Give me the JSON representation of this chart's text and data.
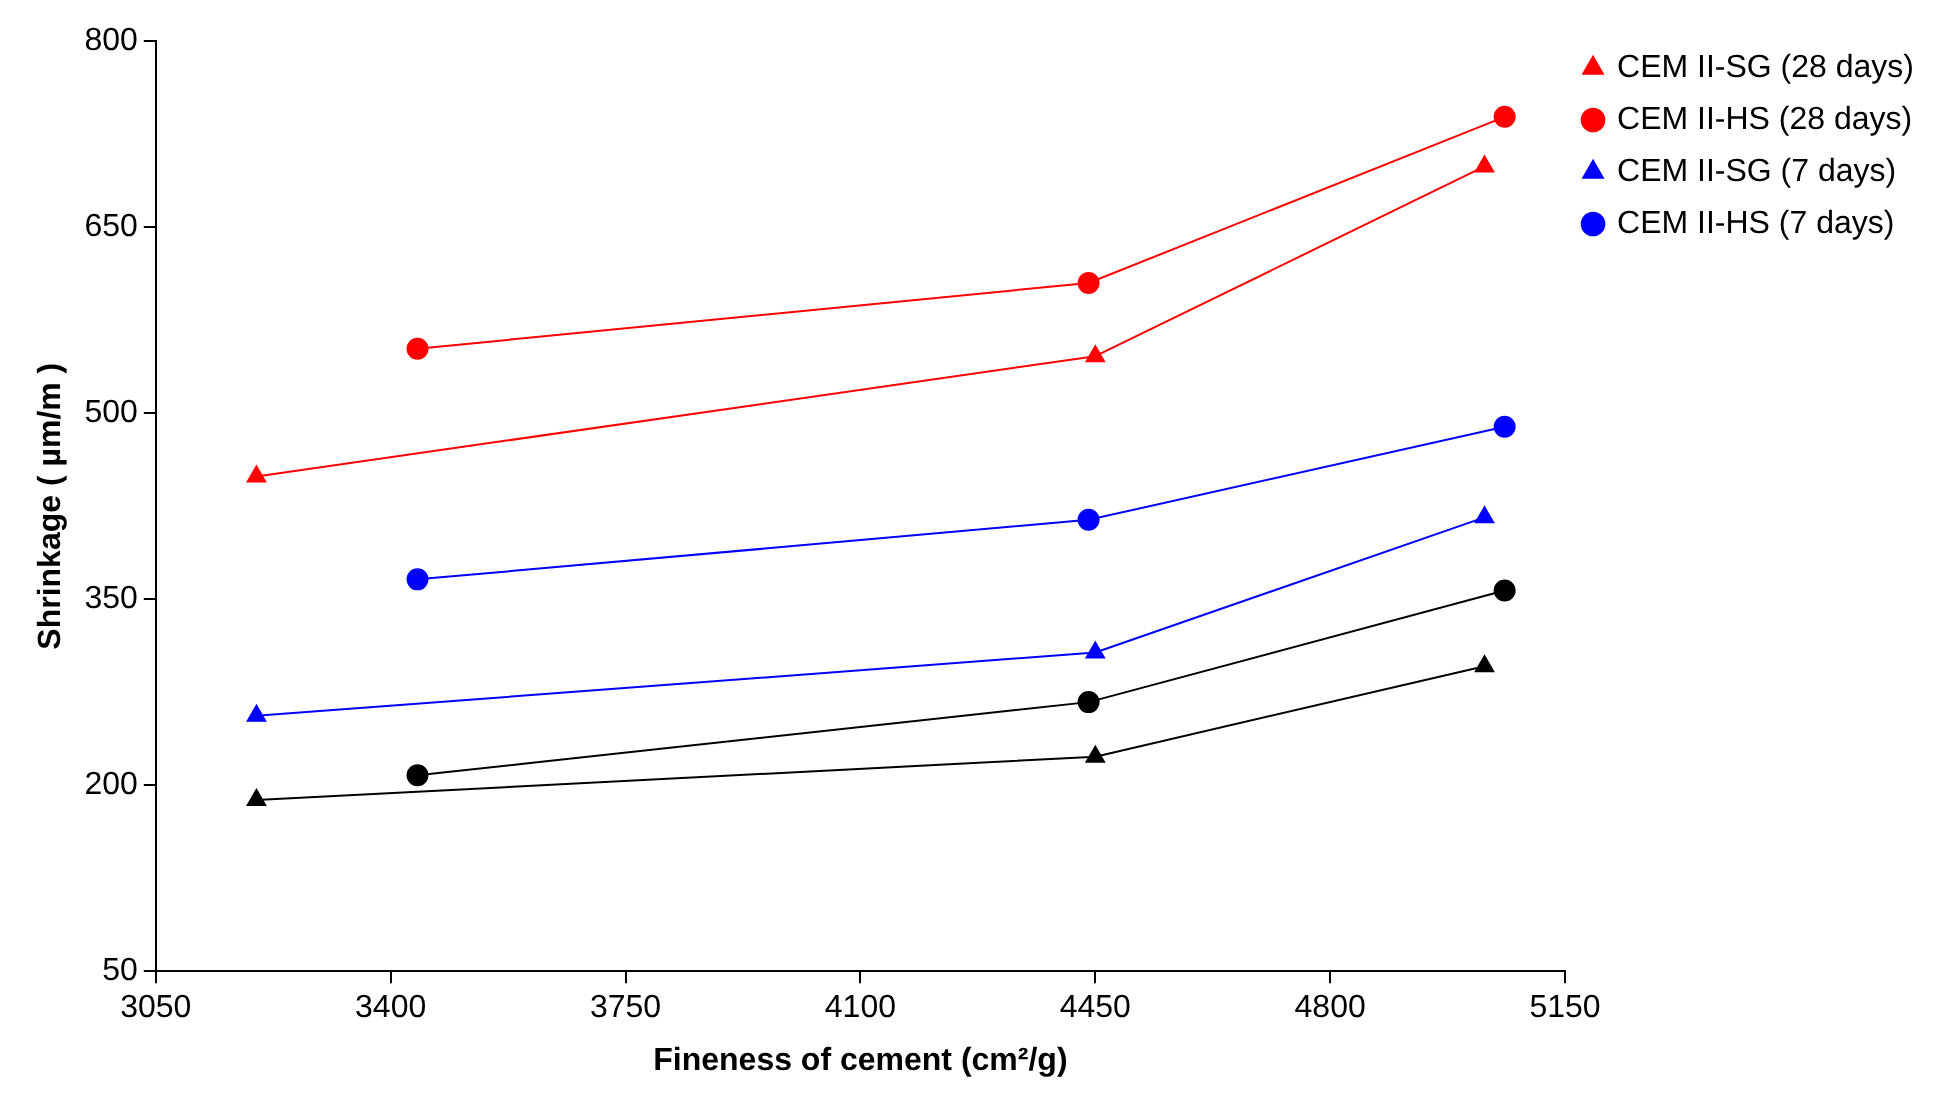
{
  "chart_data": {
    "type": "line",
    "xlabel": "Fineness of cement (cm²/g)",
    "ylabel": "Shrinkage ( µm/m )",
    "xlim": [
      3050,
      5150
    ],
    "xticks": [
      3050,
      3400,
      3750,
      4100,
      4450,
      4800,
      5150
    ],
    "ylim": [
      50,
      800
    ],
    "yticks": [
      50,
      200,
      350,
      500,
      650,
      800
    ],
    "grid": false,
    "legend": "top right",
    "line_style": "solid",
    "series": [
      {
        "name": "CEM II-SG (28 days)",
        "color": "#ff0000",
        "marker": "triangle",
        "x": [
          3200,
          4450,
          5030
        ],
        "values": [
          449,
          546,
          699
        ]
      },
      {
        "name": "CEM II-HS (28 days)",
        "color": "#ff0000",
        "marker": "circle",
        "x": [
          3440,
          4440,
          5060
        ],
        "values": [
          552,
          605,
          739
        ]
      },
      {
        "name": "CEM II-SG (7 days)",
        "color": "#0000ff",
        "marker": "triangle",
        "x": [
          3200,
          4450,
          5030
        ],
        "values": [
          256,
          307,
          416
        ]
      },
      {
        "name": "CEM II-HS (7 days)",
        "color": "#0000ff",
        "marker": "circle",
        "x": [
          3440,
          4440,
          5060
        ],
        "values": [
          366,
          414,
          489
        ]
      },
      {
        "color": "#000000",
        "marker": "circle",
        "x": [
          3440,
          4440,
          5060
        ],
        "values": [
          208,
          267,
          357
        ]
      },
      {
        "color": "#000000",
        "marker": "triangle",
        "x": [
          3200,
          4450,
          5030
        ],
        "values": [
          188,
          223,
          296
        ]
      }
    ]
  }
}
